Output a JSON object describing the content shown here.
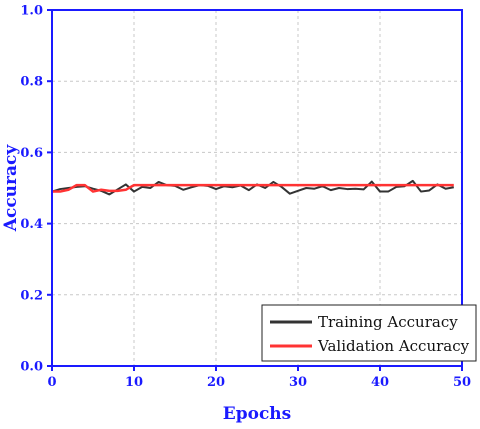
{
  "chart_data": {
    "type": "line",
    "xlabel": "Epochs",
    "ylabel": "Accuracy",
    "xlim": [
      0,
      50
    ],
    "ylim": [
      0.0,
      1.0
    ],
    "xticks": [
      "0",
      "10",
      "20",
      "30",
      "40",
      "50"
    ],
    "yticks": [
      "0.0",
      "0.2",
      "0.4",
      "0.6",
      "0.8",
      "1.0"
    ],
    "grid": true,
    "legend_position": "bottom-right",
    "axis_color": "#1a1aff",
    "series": [
      {
        "name": "Training Accuracy",
        "color": "#333333",
        "x": [
          0,
          1,
          2,
          3,
          4,
          5,
          6,
          7,
          8,
          9,
          10,
          11,
          12,
          13,
          14,
          15,
          16,
          17,
          18,
          19,
          20,
          21,
          22,
          23,
          24,
          25,
          26,
          27,
          28,
          29,
          30,
          31,
          32,
          33,
          34,
          35,
          36,
          37,
          38,
          39,
          40,
          41,
          42,
          43,
          44,
          45,
          46,
          47,
          48,
          49
        ],
        "values": [
          0.49,
          0.497,
          0.5,
          0.503,
          0.505,
          0.498,
          0.492,
          0.482,
          0.496,
          0.51,
          0.49,
          0.503,
          0.5,
          0.517,
          0.508,
          0.506,
          0.495,
          0.502,
          0.508,
          0.506,
          0.497,
          0.505,
          0.502,
          0.507,
          0.494,
          0.51,
          0.5,
          0.517,
          0.503,
          0.484,
          0.492,
          0.5,
          0.498,
          0.505,
          0.494,
          0.5,
          0.497,
          0.498,
          0.496,
          0.518,
          0.49,
          0.49,
          0.503,
          0.505,
          0.52,
          0.49,
          0.493,
          0.51,
          0.498,
          0.502
        ]
      },
      {
        "name": "Validation Accuracy",
        "color": "#ff3333",
        "x": [
          0,
          1,
          2,
          3,
          4,
          5,
          6,
          7,
          8,
          9,
          10,
          11,
          12,
          13,
          14,
          15,
          16,
          17,
          18,
          19,
          20,
          21,
          22,
          23,
          24,
          25,
          26,
          27,
          28,
          29,
          30,
          31,
          32,
          33,
          34,
          35,
          36,
          37,
          38,
          39,
          40,
          41,
          42,
          43,
          44,
          45,
          46,
          47,
          48,
          49
        ],
        "values": [
          0.49,
          0.49,
          0.495,
          0.508,
          0.508,
          0.49,
          0.495,
          0.492,
          0.492,
          0.495,
          0.508,
          0.508,
          0.508,
          0.508,
          0.508,
          0.508,
          0.508,
          0.508,
          0.508,
          0.508,
          0.508,
          0.508,
          0.508,
          0.508,
          0.508,
          0.508,
          0.508,
          0.508,
          0.508,
          0.508,
          0.508,
          0.508,
          0.508,
          0.508,
          0.508,
          0.508,
          0.508,
          0.508,
          0.508,
          0.508,
          0.508,
          0.508,
          0.508,
          0.508,
          0.508,
          0.508,
          0.508,
          0.508,
          0.508,
          0.508
        ]
      }
    ]
  }
}
